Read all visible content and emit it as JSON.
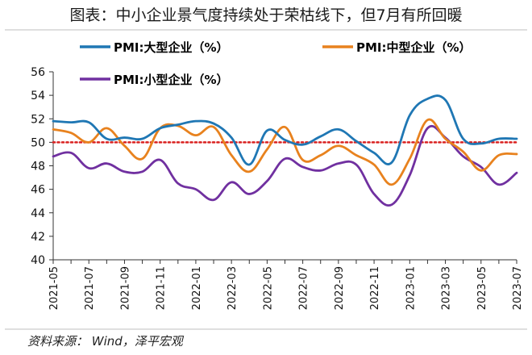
{
  "title": "图表：中小企业景气度持续处于荣枯线下，但7月有所回暖",
  "source": "资料来源：  Wind，泽平宏观",
  "chart_data": {
    "type": "line",
    "title": "图表：中小企业景气度持续处于荣枯线下，但7月有所回暖",
    "xlabel": "",
    "ylabel": "",
    "ylim": [
      40,
      56
    ],
    "yticks": [
      40,
      42,
      44,
      46,
      48,
      50,
      52,
      54,
      56
    ],
    "reference_line": 50,
    "legend_position": "top",
    "x": [
      "2021-05",
      "2021-06",
      "2021-07",
      "2021-08",
      "2021-09",
      "2021-10",
      "2021-11",
      "2021-12",
      "2022-01",
      "2022-02",
      "2022-03",
      "2022-04",
      "2022-05",
      "2022-06",
      "2022-07",
      "2022-08",
      "2022-09",
      "2022-10",
      "2022-11",
      "2022-12",
      "2023-01",
      "2023-02",
      "2023-03",
      "2023-04",
      "2023-05",
      "2023-06",
      "2023-07"
    ],
    "xtick_labels": [
      "2021-05",
      "2021-07",
      "2021-09",
      "2021-11",
      "2022-01",
      "2022-03",
      "2022-05",
      "2022-07",
      "2022-09",
      "2022-11",
      "2023-01",
      "2023-03",
      "2023-05",
      "2023-07"
    ],
    "series": [
      {
        "name": "PMI:大型企业（%）",
        "color": "#1f77b4",
        "values": [
          51.8,
          51.7,
          51.7,
          50.3,
          50.4,
          50.3,
          51.2,
          51.5,
          51.8,
          51.6,
          50.4,
          48.1,
          51.0,
          50.2,
          49.8,
          50.5,
          51.1,
          50.1,
          49.1,
          48.3,
          52.3,
          53.7,
          53.6,
          50.3,
          49.9,
          50.3,
          50.3
        ]
      },
      {
        "name": "PMI:中型企业（%）",
        "color": "#e8821e",
        "values": [
          51.1,
          50.8,
          50.0,
          51.2,
          49.7,
          48.6,
          51.2,
          51.4,
          50.6,
          51.3,
          48.9,
          47.5,
          49.4,
          51.3,
          48.5,
          48.9,
          49.7,
          48.9,
          48.1,
          46.4,
          48.6,
          51.9,
          50.3,
          49.2,
          47.6,
          48.9,
          49.0
        ]
      },
      {
        "name": "PMI:小型企业（%）",
        "color": "#7030a0",
        "values": [
          48.8,
          49.1,
          47.8,
          48.2,
          47.5,
          47.5,
          48.5,
          46.5,
          46.0,
          45.1,
          46.6,
          45.6,
          46.7,
          48.6,
          47.9,
          47.6,
          48.2,
          48.1,
          45.6,
          44.7,
          47.2,
          51.2,
          50.4,
          48.8,
          47.9,
          46.4,
          47.4
        ]
      }
    ]
  }
}
